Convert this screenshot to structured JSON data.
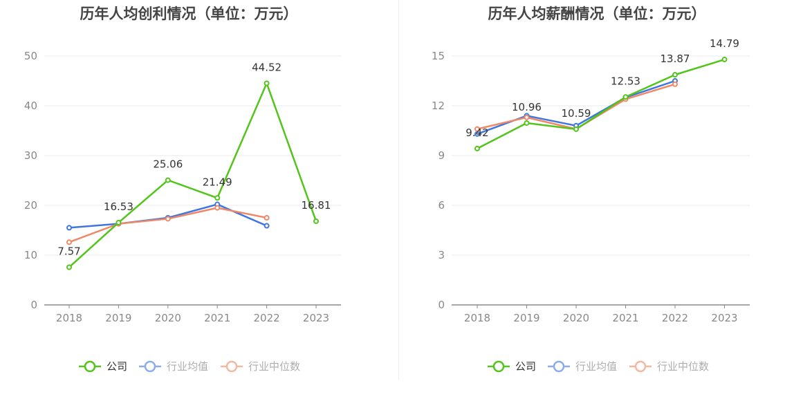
{
  "colors": {
    "company": "#52c41a",
    "industry_avg": "#3e75e0",
    "industry_median": "#ee8866",
    "axis_text": "#888888",
    "label_text": "#333333",
    "grid": "#e6e9f2",
    "axis_line": "#888888",
    "title": "#444444"
  },
  "chart_data": [
    {
      "type": "line",
      "title": "历年人均创利情况（单位：万元）",
      "categories": [
        "2018",
        "2019",
        "2020",
        "2021",
        "2022",
        "2023"
      ],
      "ylim": [
        0,
        50
      ],
      "yticks": [
        0,
        10,
        20,
        30,
        40,
        50
      ],
      "series": [
        {
          "name": "公司",
          "key": "company",
          "values": [
            7.57,
            16.53,
            25.06,
            21.49,
            44.52,
            16.81
          ],
          "labels": [
            "7.57",
            "16.53",
            "25.06",
            "21.49",
            "44.52",
            "16.81"
          ]
        },
        {
          "name": "行业均值",
          "key": "industry_avg",
          "values": [
            15.5,
            16.3,
            17.5,
            20.2,
            15.9,
            null
          ]
        },
        {
          "name": "行业中位数",
          "key": "industry_median",
          "values": [
            12.6,
            16.3,
            17.3,
            19.5,
            17.5,
            null
          ]
        }
      ]
    },
    {
      "type": "line",
      "title": "历年人均薪酬情况（单位：万元）",
      "categories": [
        "2018",
        "2019",
        "2020",
        "2021",
        "2022",
        "2023"
      ],
      "ylim": [
        0,
        15
      ],
      "yticks": [
        0,
        3,
        6,
        9,
        12,
        15
      ],
      "series": [
        {
          "name": "公司",
          "key": "company",
          "values": [
            9.42,
            10.96,
            10.59,
            12.53,
            13.87,
            14.79
          ],
          "labels": [
            "9.42",
            "10.96",
            "10.59",
            "12.53",
            "13.87",
            "14.79"
          ]
        },
        {
          "name": "行业均值",
          "key": "industry_avg",
          "values": [
            10.3,
            11.4,
            10.8,
            12.5,
            13.5,
            null
          ]
        },
        {
          "name": "行业中位数",
          "key": "industry_median",
          "values": [
            10.6,
            11.3,
            10.6,
            12.4,
            13.3,
            null
          ]
        }
      ]
    }
  ]
}
